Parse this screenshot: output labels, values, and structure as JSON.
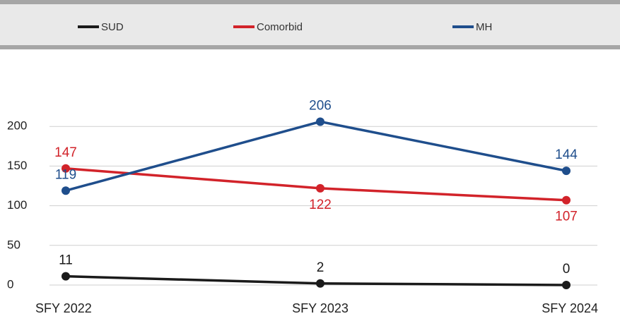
{
  "chart_data": {
    "type": "line",
    "categories": [
      "SFY 2022",
      "SFY 2023",
      "SFY 2024"
    ],
    "series": [
      {
        "name": "SUD",
        "color": "#1a1a1a",
        "values": [
          11,
          2,
          0
        ]
      },
      {
        "name": "Comorbid",
        "color": "#d2232a",
        "values": [
          147,
          122,
          107
        ]
      },
      {
        "name": "MH",
        "color": "#1f4e8c",
        "values": [
          119,
          206,
          144
        ]
      }
    ],
    "ylim": [
      0,
      250
    ],
    "yticks": [
      0,
      50,
      100,
      150,
      200
    ],
    "grid": true,
    "legend": "top"
  }
}
